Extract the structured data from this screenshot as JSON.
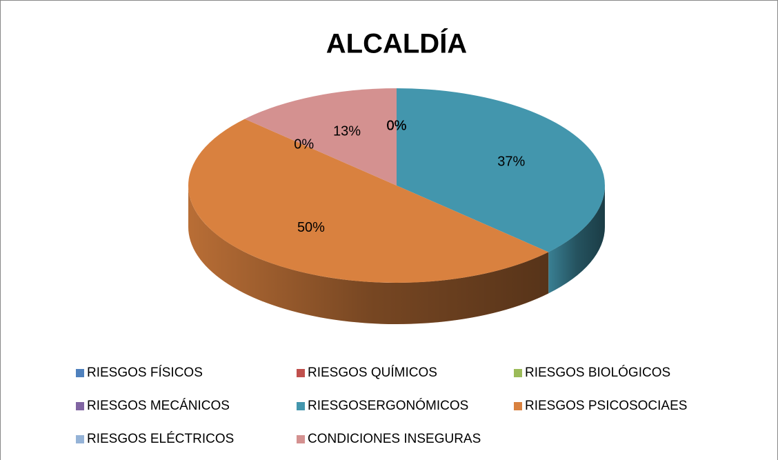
{
  "chart_data": {
    "type": "pie",
    "title": "ALCALDÍA",
    "categories": [
      "RIESGOS FÍSICOS",
      "RIESGOS QUÍMICOS",
      "RIESGOS BIOLÓGICOS",
      "RIESGOS MECÁNICOS",
      "RIESGOSERGONÓMICOS",
      "RIESGOS PSICOSOCIAES",
      "RIESGOS ELÉCTRICOS",
      "CONDICIONES INSEGURAS"
    ],
    "values": [
      0,
      0,
      0,
      0,
      37,
      50,
      0,
      13
    ],
    "value_labels": [
      "0%",
      "0%",
      "0%",
      "0%",
      "37%",
      "50%",
      "0%",
      "13%"
    ],
    "colors": [
      "#4f81bd",
      "#c0504d",
      "#9bbb59",
      "#8064a2",
      "#4396ad",
      "#d9813f",
      "#95b3d7",
      "#d49190"
    ],
    "legend": "bottom"
  }
}
